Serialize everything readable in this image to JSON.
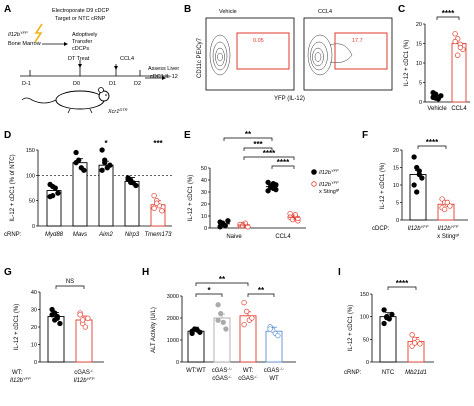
{
  "panels": {
    "A": {
      "letter": "A",
      "electroporate": "Electroporate D9 cDCP",
      "crnp_line": "Target or NTC cRNP",
      "gene": "Il12b",
      "gene_sup": "YFP",
      "bone_marrow": "Bone Marrow",
      "adoptive1": "Adoptively",
      "adoptive2": "Transfer",
      "adoptive3": "cDCPs",
      "dt_treat": "DT Treat",
      "ccl4": "CCL4",
      "days": [
        "D-1",
        "D0",
        "D1",
        "D2"
      ],
      "assess1": "Assess Liver",
      "assess2": "cDC1 IL-12",
      "mouse_gene": "Xcr1",
      "mouse_sup": "DTR"
    },
    "B": {
      "letter": "B",
      "titles": [
        "Vehicle",
        "CCL4"
      ],
      "gate_values": [
        "0.05",
        "17.7"
      ],
      "ylabel": "CD11c PE/Cy7",
      "xlabel": "YFP (IL-12)"
    },
    "C": {
      "letter": "C",
      "ylabel": "IL-12 + cDC1 (%)",
      "yticks": [
        "0",
        "5",
        "10",
        "15",
        "20"
      ],
      "categories": [
        "Vehicle",
        "CCL4"
      ],
      "sig": "****"
    },
    "D": {
      "letter": "D",
      "ylabel": "IL-12 + cDC1 (% of NTC)",
      "yticks": [
        "0",
        "50",
        "100",
        "150"
      ],
      "prefix": "cRNP:",
      "categories": [
        "Myd88",
        "Mavs",
        "Aim2",
        "Nlrp3",
        "Tmem173"
      ],
      "sigs": [
        "*",
        "***"
      ]
    },
    "E": {
      "letter": "E",
      "ylabel": "IL-12 + cDC1 (%)",
      "yticks": [
        "0",
        "10",
        "20",
        "30",
        "40",
        "50"
      ],
      "categories": [
        "Naive",
        "CCL4"
      ],
      "sigs": [
        "**",
        "***",
        "****",
        "****"
      ],
      "legend1": "Il12b",
      "legend1_sup": "YFP",
      "legend2": "Il12b",
      "legend2_sup": "YFP",
      "legend2_tail": "x Sting",
      "legend2_tail_sup": "gt"
    },
    "F": {
      "letter": "F",
      "ylabel": "IL-12 + cDC1 (%)",
      "yticks": [
        "0",
        "5",
        "10",
        "15",
        "20"
      ],
      "prefix": "cDCP:",
      "cat1": "Il12b",
      "cat1_sup": "YFP",
      "cat2": "Il12b",
      "cat2_sup": "YFP",
      "cat2_tail": "x Sting",
      "cat2_tail_sup": "gt",
      "sig": "****"
    },
    "G": {
      "letter": "G",
      "ylabel": "IL-12 + cDC1 (%)",
      "yticks": [
        "0",
        "10",
        "20",
        "30",
        "40"
      ],
      "sig": "NS",
      "prefix": "WT:",
      "prefix2": "Il12b",
      "prefix2_sup": "YFP",
      "cat2a": "cGAS",
      "cat2a_sup": "-/-",
      "cat2b": "Il12b",
      "cat2b_sup": "YFP"
    },
    "H": {
      "letter": "H",
      "ylabel": "ALT Activity (U/L)",
      "yticks": [
        "0",
        "1000",
        "2000",
        "3000"
      ],
      "sigs": [
        "**",
        "*",
        "**"
      ],
      "cats": [
        [
          "WT:WT",
          ""
        ],
        [
          "cGAS",
          "cGAS"
        ],
        [
          "WT:",
          "cGAS"
        ],
        [
          "cGAS",
          "WT"
        ]
      ],
      "ko": "-/-"
    },
    "I": {
      "letter": "I",
      "ylabel": "IL-12 + cDC1 (%)",
      "yticks": [
        "0",
        "50",
        "100",
        "150"
      ],
      "prefix": "cRNP:",
      "categories": [
        "NTC",
        "Mb21d1"
      ],
      "sig": "****"
    }
  },
  "chart_data": [
    {
      "panel": "C",
      "type": "scatter",
      "categories": [
        "Vehicle",
        "CCL4"
      ],
      "ylabel": "IL-12 + cDC1 (%)",
      "ylim": [
        0,
        20
      ],
      "series": [
        {
          "values": [
            1.2,
            2.0,
            0.8,
            1.6,
            2.4,
            1.0
          ],
          "mean": 1.6
        },
        {
          "values": [
            17.5,
            16.2,
            14.8,
            13.5,
            15.5,
            12.0,
            14.0
          ],
          "mean": 15.0
        }
      ]
    },
    {
      "panel": "D",
      "type": "bar",
      "categories": [
        "Myd88",
        "Mavs",
        "Aim2",
        "Nlrp3",
        "Tmem173"
      ],
      "ylabel": "IL-12 + cDC1 (% of NTC)",
      "ylim": [
        0,
        150
      ],
      "reference_line": 100,
      "values": [
        70,
        125,
        120,
        88,
        42
      ],
      "points": [
        [
          82,
          60,
          75,
          65,
          58,
          78
        ],
        [
          145,
          130,
          115,
          110,
          125
        ],
        [
          150,
          125,
          115,
          120,
          110,
          130
        ],
        [
          95,
          90,
          85,
          80,
          92,
          86
        ],
        [
          60,
          50,
          40,
          30,
          35,
          45
        ]
      ]
    },
    {
      "panel": "E",
      "type": "scatter",
      "categories": [
        "Naive",
        "CCL4"
      ],
      "ylabel": "IL-12 + cDC1 (%)",
      "ylim": [
        0,
        50
      ],
      "series": [
        {
          "values_naive": [
            5,
            3,
            2,
            6,
            1,
            4
          ],
          "values_ccl4": [
            38,
            35,
            33,
            36,
            31,
            34,
            37,
            32
          ],
          "mean_naive": 3.5,
          "mean_ccl4": 34.5
        },
        {
          "values_naive": [
            2,
            3,
            4,
            1,
            3,
            2
          ],
          "values_ccl4": [
            12,
            8,
            10,
            6,
            9,
            7,
            11,
            8
          ],
          "mean_naive": 2.5,
          "mean_ccl4": 9.0
        }
      ]
    },
    {
      "panel": "F",
      "type": "bar",
      "ylabel": "IL-12 + cDC1 (%)",
      "ylim": [
        0,
        20
      ],
      "values": [
        13,
        4.5
      ],
      "points": [
        [
          18,
          15,
          13,
          12,
          10,
          8,
          14
        ],
        [
          6,
          5,
          4.5,
          4,
          3.5,
          3,
          5
        ]
      ]
    },
    {
      "panel": "G",
      "type": "bar",
      "ylabel": "IL-12 + cDC1 (%)",
      "ylim": [
        0,
        40
      ],
      "values": [
        26,
        24
      ],
      "points": [
        [
          30,
          28,
          25,
          22,
          27,
          24,
          26
        ],
        [
          28,
          22,
          20,
          25,
          27,
          24
        ]
      ]
    },
    {
      "panel": "H",
      "type": "bar",
      "ylabel": "ALT Activity (U/L)",
      "ylim": [
        0,
        3000
      ],
      "values": [
        1400,
        2000,
        2100,
        1400
      ],
      "points": [
        [
          1300,
          1500,
          1450,
          1350,
          1400
        ],
        [
          2600,
          2200,
          1800,
          1500,
          1900
        ],
        [
          2700,
          2300,
          1900,
          2000,
          1700
        ],
        [
          1600,
          1450,
          1300,
          1200,
          1500
        ]
      ]
    },
    {
      "panel": "I",
      "type": "bar",
      "categories": [
        "NTC",
        "Mb21d1"
      ],
      "ylabel": "IL-12 + cDC1 (%)",
      "ylim": [
        0,
        150
      ],
      "values": [
        100,
        45
      ],
      "points": [
        [
          115,
          100,
          95,
          105,
          85,
          98
        ],
        [
          60,
          50,
          45,
          40,
          35,
          42
        ]
      ]
    }
  ]
}
